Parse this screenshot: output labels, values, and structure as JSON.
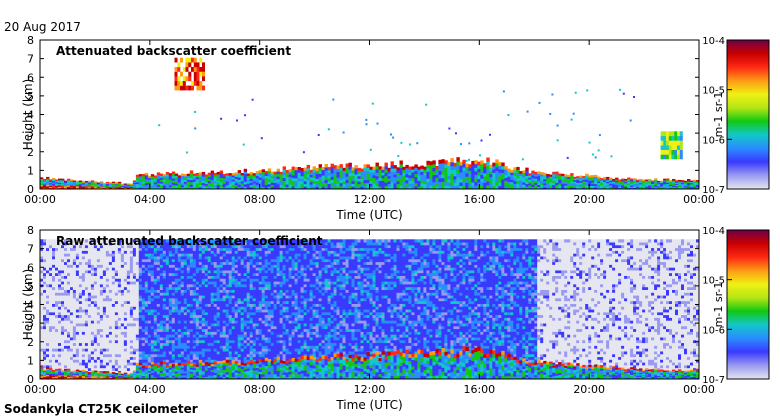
{
  "date_label": "20 Aug 2017",
  "footer_label": "Sodankyla CT25K ceilometer",
  "colors": {
    "colormap": [
      "#e6e6f0",
      "#9a9af0",
      "#3a3aff",
      "#2a8cff",
      "#12c8c8",
      "#12c812",
      "#b4e614",
      "#f0f014",
      "#ff9a14",
      "#ff2814",
      "#c80000",
      "#6e0046"
    ],
    "no_data": "#ffffff",
    "noise_floor": "#dcdce6"
  },
  "chart_data": [
    {
      "type": "heatmap",
      "title": "Attenuated backscatter coefficient",
      "xlabel": "Time (UTC)",
      "ylabel": "Height (km)",
      "xlim": [
        0,
        24
      ],
      "ylim": [
        0,
        8
      ],
      "x_ticks": [
        "00:00",
        "04:00",
        "08:00",
        "12:00",
        "16:00",
        "20:00",
        "00:00"
      ],
      "y_ticks": [
        "0",
        "1",
        "2",
        "3",
        "4",
        "5",
        "6",
        "7",
        "8"
      ],
      "colorbar": {
        "scale": "log",
        "range": [
          1e-07,
          0.0001
        ],
        "tick_labels": [
          "10-7",
          "10-6",
          "10-5",
          "10-4"
        ],
        "unit": "m-1 sr-1"
      },
      "features": {
        "boundary_layer_top_km": [
          [
            0,
            0.6
          ],
          [
            2,
            0.4
          ],
          [
            3.3,
            0.3
          ],
          [
            3.5,
            0.8
          ],
          [
            6,
            0.9
          ],
          [
            8,
            1.0
          ],
          [
            10,
            1.2
          ],
          [
            12,
            1.3
          ],
          [
            14,
            1.4
          ],
          [
            16,
            1.6
          ],
          [
            18,
            0.9
          ],
          [
            20,
            0.7
          ],
          [
            22,
            0.5
          ],
          [
            24,
            0.5
          ]
        ],
        "elevated_layer": {
          "time_h": [
            4.9,
            5.9
          ],
          "height_km": [
            5.3,
            7.0
          ]
        },
        "cloud_2km_near_23h": {
          "time_h": [
            22.6,
            23.4
          ],
          "height_km": [
            1.6,
            3.0
          ]
        }
      }
    },
    {
      "type": "heatmap",
      "title": "Raw attenuated backscatter coefficient",
      "xlabel": "Time (UTC)",
      "ylabel": "Height (km)",
      "xlim": [
        0,
        24
      ],
      "ylim": [
        0,
        8
      ],
      "x_ticks": [
        "00:00",
        "04:00",
        "08:00",
        "12:00",
        "16:00",
        "20:00",
        "00:00"
      ],
      "y_ticks": [
        "0",
        "1",
        "2",
        "3",
        "4",
        "5",
        "6",
        "7",
        "8"
      ],
      "colorbar": {
        "scale": "log",
        "range": [
          1e-07,
          0.0001
        ],
        "tick_labels": [
          "10-7",
          "10-6",
          "10-5",
          "10-4"
        ],
        "unit": "m-1 sr-1"
      },
      "features": {
        "noisy_daytime_hours": [
          3.5,
          18.0
        ],
        "max_range_km": 7.5
      }
    }
  ]
}
